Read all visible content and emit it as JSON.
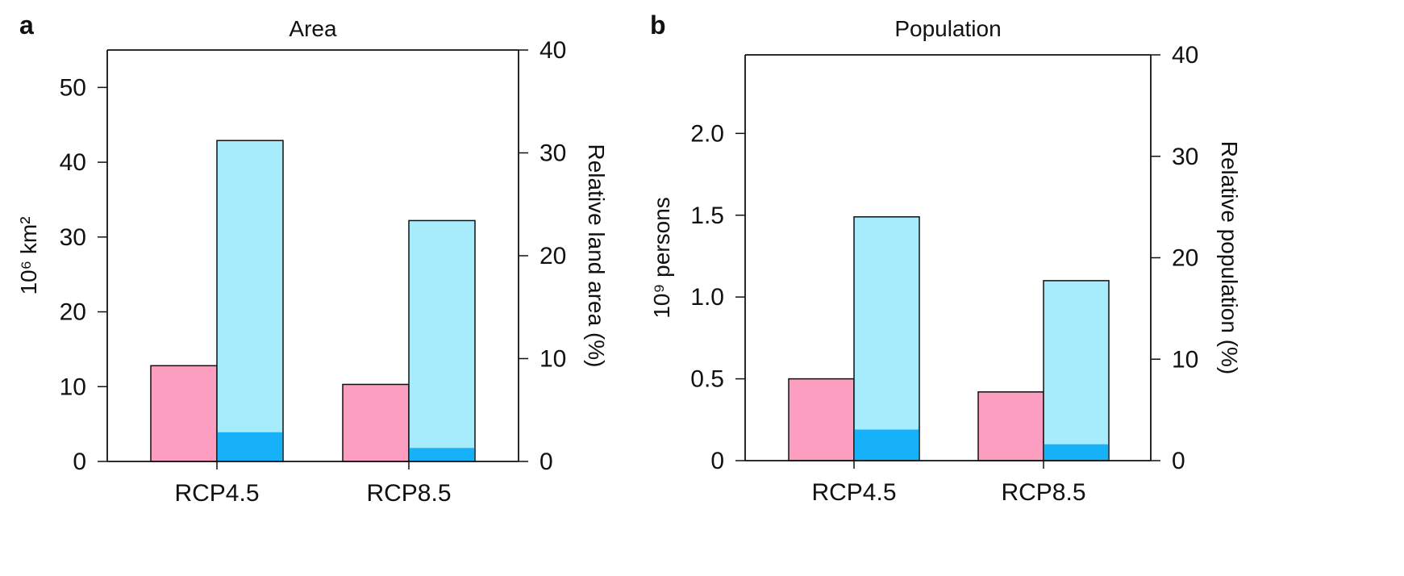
{
  "colors": {
    "pink": "#fb9ec0",
    "light_blue": "#a6ecfc",
    "dark_blue": "#17b1fa",
    "axis": "#111111"
  },
  "chart_data": [
    {
      "type": "bar",
      "panel_label": "a",
      "title": "Area",
      "ylabel": "10⁶ km²",
      "ylabel_right": "Relative land area (%)",
      "categories": [
        "RCP4.5",
        "RCP8.5"
      ],
      "series": [
        {
          "values": [
            12.8,
            10.3
          ],
          "color": "#fb9ec0"
        },
        {
          "values": [
            42.9,
            32.2
          ],
          "color": "#a6ecfc"
        },
        {
          "values": [
            3.9,
            1.8
          ],
          "color": "#17b1fa",
          "overlay_on_series": 1
        }
      ],
      "ylim": [
        0,
        55
      ],
      "yticks": [
        0,
        10,
        20,
        30,
        40,
        50
      ],
      "ylim_right": [
        0,
        40
      ],
      "yticks_right": [
        0,
        10,
        20,
        30,
        40
      ]
    },
    {
      "type": "bar",
      "panel_label": "b",
      "title": "Population",
      "ylabel": "10⁹ persons",
      "ylabel_right": "Relative population (%)",
      "categories": [
        "RCP4.5",
        "RCP8.5"
      ],
      "series": [
        {
          "values": [
            0.5,
            0.42
          ],
          "color": "#fb9ec0"
        },
        {
          "values": [
            1.49,
            1.1
          ],
          "color": "#a6ecfc"
        },
        {
          "values": [
            0.19,
            0.1
          ],
          "color": "#17b1fa",
          "overlay_on_series": 1
        }
      ],
      "ylim": [
        0,
        2.48
      ],
      "yticks": [
        0,
        0.5,
        1.0,
        1.5,
        2.0
      ],
      "ytick_labels": [
        "0",
        "0.5",
        "1.0",
        "1.5",
        "2.0"
      ],
      "ylim_right": [
        0,
        40
      ],
      "yticks_right": [
        0,
        10,
        20,
        30,
        40
      ]
    }
  ]
}
